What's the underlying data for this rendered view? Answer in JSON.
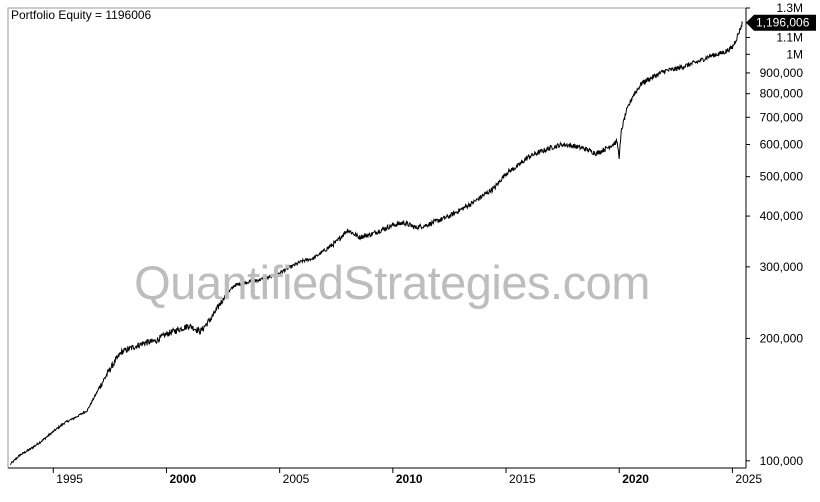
{
  "chart_data": {
    "type": "line",
    "title": "Portfolio Equity = 1196006",
    "xlabel": "",
    "ylabel": "",
    "y_scale": "log",
    "ylim": [
      96000,
      1300000
    ],
    "xlim": [
      1993.0,
      2025.6
    ],
    "grid": false,
    "legend": "none",
    "last_value_label": "1,196,006",
    "x_ticks": [
      {
        "value": 1995,
        "label": "1995",
        "bold": false
      },
      {
        "value": 2000,
        "label": "2000",
        "bold": true
      },
      {
        "value": 2005,
        "label": "2005",
        "bold": false
      },
      {
        "value": 2010,
        "label": "2010",
        "bold": true
      },
      {
        "value": 2015,
        "label": "2015",
        "bold": false
      },
      {
        "value": 2020,
        "label": "2020",
        "bold": true
      },
      {
        "value": 2025,
        "label": "2025",
        "bold": false
      }
    ],
    "y_ticks": [
      {
        "value": 100000,
        "label": "100,000"
      },
      {
        "value": 200000,
        "label": "200,000"
      },
      {
        "value": 300000,
        "label": "300,000"
      },
      {
        "value": 400000,
        "label": "400,000"
      },
      {
        "value": 500000,
        "label": "500,000"
      },
      {
        "value": 600000,
        "label": "600,000"
      },
      {
        "value": 700000,
        "label": "700,000"
      },
      {
        "value": 800000,
        "label": "800,000"
      },
      {
        "value": 900000,
        "label": "900,000"
      },
      {
        "value": 1000000,
        "label": "1M"
      },
      {
        "value": 1100000,
        "label": "1.1M"
      },
      {
        "value": 1300000,
        "label": "1.3M"
      }
    ],
    "series": [
      {
        "x": [
          1993.1,
          1993.5,
          1994.0,
          1994.5,
          1995.0,
          1995.5,
          1996.0,
          1996.5,
          1997.0,
          1997.5,
          1998.0,
          1998.5,
          1999.0,
          1999.5,
          2000.0,
          2000.5,
          2001.0,
          2001.5,
          2002.0,
          2002.5,
          2003.0,
          2003.5,
          2004.0,
          2004.5,
          2005.0,
          2005.5,
          2006.0,
          2006.5,
          2007.0,
          2007.5,
          2008.0,
          2008.5,
          2009.0,
          2009.5,
          2010.0,
          2010.5,
          2011.0,
          2011.5,
          2012.0,
          2012.5,
          2013.0,
          2013.5,
          2014.0,
          2014.5,
          2015.0,
          2015.5,
          2016.0,
          2016.5,
          2017.0,
          2017.5,
          2018.0,
          2018.5,
          2019.0,
          2019.5,
          2019.9,
          2020.0,
          2020.1,
          2020.3,
          2020.6,
          2021.0,
          2021.5,
          2022.0,
          2022.5,
          2023.0,
          2023.5,
          2024.0,
          2024.3,
          2024.6,
          2025.0,
          2025.2,
          2025.45
        ],
        "y": [
          98000,
          103000,
          107000,
          112000,
          118000,
          124000,
          128000,
          133000,
          150000,
          168000,
          185000,
          190000,
          195000,
          197000,
          205000,
          210000,
          215000,
          208000,
          225000,
          250000,
          270000,
          275000,
          278000,
          282000,
          290000,
          300000,
          310000,
          315000,
          330000,
          345000,
          370000,
          355000,
          360000,
          370000,
          380000,
          385000,
          375000,
          380000,
          390000,
          400000,
          415000,
          430000,
          450000,
          470000,
          510000,
          530000,
          560000,
          575000,
          590000,
          600000,
          595000,
          585000,
          570000,
          590000,
          610000,
          560000,
          650000,
          720000,
          790000,
          850000,
          880000,
          910000,
          920000,
          940000,
          960000,
          990000,
          1000000,
          1010000,
          1040000,
          1100000,
          1196006
        ]
      }
    ]
  },
  "watermark_text": "QuantifiedStrategies.com",
  "colors": {
    "line": "#000000",
    "axis": "#000000",
    "watermark": "#bdbdbd",
    "last_value_bg": "#000000",
    "last_value_text": "#ffffff"
  }
}
